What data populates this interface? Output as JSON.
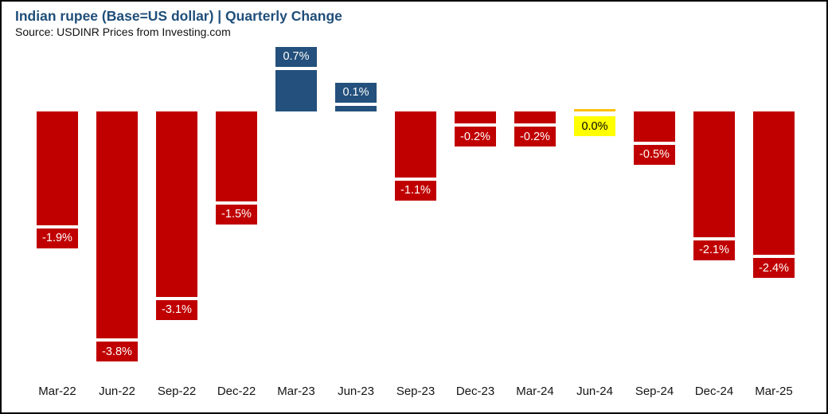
{
  "header": {
    "title": "Indian rupee (Base=US dollar) | Quarterly Change",
    "source": "Source: USDINR Prices from Investing.com"
  },
  "colors": {
    "negative_bar": "#C00000",
    "positive_bar": "#23507C",
    "zero_marker_line": "#FFC000",
    "zero_label_bg": "#FFFF00",
    "zero_label_text": "#000000",
    "data_label_text": "#FFFFFF",
    "title_text": "#1F4E79",
    "axis_text": "#141414",
    "frame_border": "#000000"
  },
  "chart_data": {
    "type": "bar",
    "title": "Indian rupee (Base=US dollar) | Quarterly Change",
    "subtitle": "Source: USDINR Prices from Investing.com",
    "xlabel": "",
    "ylabel": "",
    "categories": [
      "Mar-22",
      "Jun-22",
      "Sep-22",
      "Dec-22",
      "Mar-23",
      "Jun-23",
      "Sep-23",
      "Dec-23",
      "Mar-24",
      "Jun-24",
      "Sep-24",
      "Dec-24",
      "Mar-25"
    ],
    "values": [
      -1.9,
      -3.8,
      -3.1,
      -1.5,
      0.7,
      0.1,
      -1.1,
      -0.2,
      -0.2,
      0.0,
      -0.5,
      -2.1,
      -2.4
    ],
    "data_labels": [
      "-1.9%",
      "-3.8%",
      "-3.1%",
      "-1.5%",
      "0.7%",
      "0.1%",
      "-1.1%",
      "-0.2%",
      "-0.2%",
      "0.0%",
      "-0.5%",
      "-2.1%",
      "-2.4%"
    ],
    "ylim": [
      -4.2,
      1.0
    ],
    "grid": false,
    "legend": false,
    "baseline": 0
  }
}
